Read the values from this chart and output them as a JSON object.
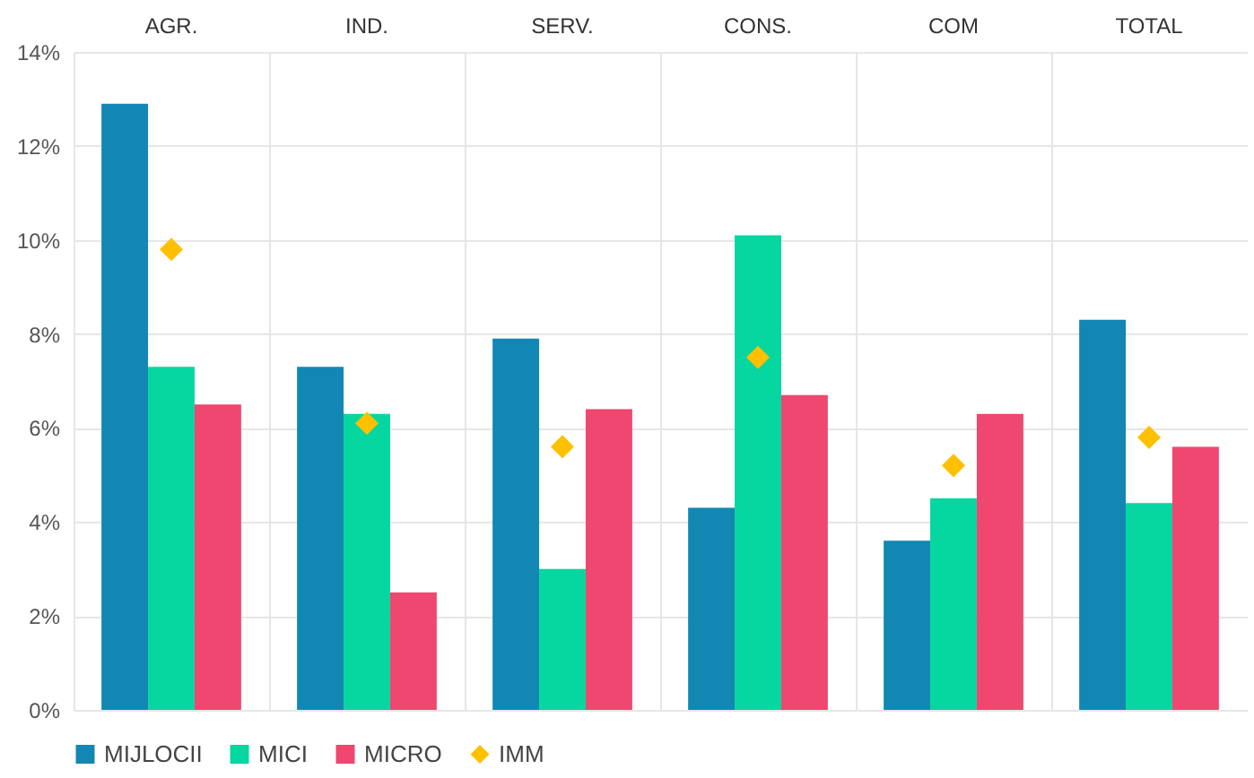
{
  "chart_data": {
    "type": "bar",
    "categories": [
      "AGR.",
      "IND.",
      "SERV.",
      "CONS.",
      "COM",
      "TOTAL"
    ],
    "series": [
      {
        "name": "MIJLOCII",
        "color": "#1287b4",
        "values": [
          12.9,
          7.3,
          7.9,
          4.3,
          3.6,
          8.3
        ]
      },
      {
        "name": "MICI",
        "color": "#06d6a0",
        "values": [
          7.3,
          6.3,
          3.0,
          10.1,
          4.5,
          4.4
        ]
      },
      {
        "name": "MICRO",
        "color": "#ef476f",
        "values": [
          6.5,
          2.5,
          6.4,
          6.7,
          6.3,
          5.6
        ]
      },
      {
        "name": "IMM",
        "color": "#ffc000",
        "type": "scatter",
        "values": [
          9.8,
          6.1,
          5.6,
          7.5,
          5.2,
          5.8
        ]
      }
    ],
    "ylim": [
      0,
      14
    ],
    "yticks": [
      {
        "value": 0,
        "label": "0%"
      },
      {
        "value": 2,
        "label": "2%"
      },
      {
        "value": 4,
        "label": "4%"
      },
      {
        "value": 6,
        "label": "6%"
      },
      {
        "value": 8,
        "label": "8%"
      },
      {
        "value": 10,
        "label": "10%"
      },
      {
        "value": 12,
        "label": "12%"
      },
      {
        "value": 14,
        "label": "14%"
      }
    ],
    "grid": true,
    "legend": "bottom",
    "marker": "diamond"
  }
}
